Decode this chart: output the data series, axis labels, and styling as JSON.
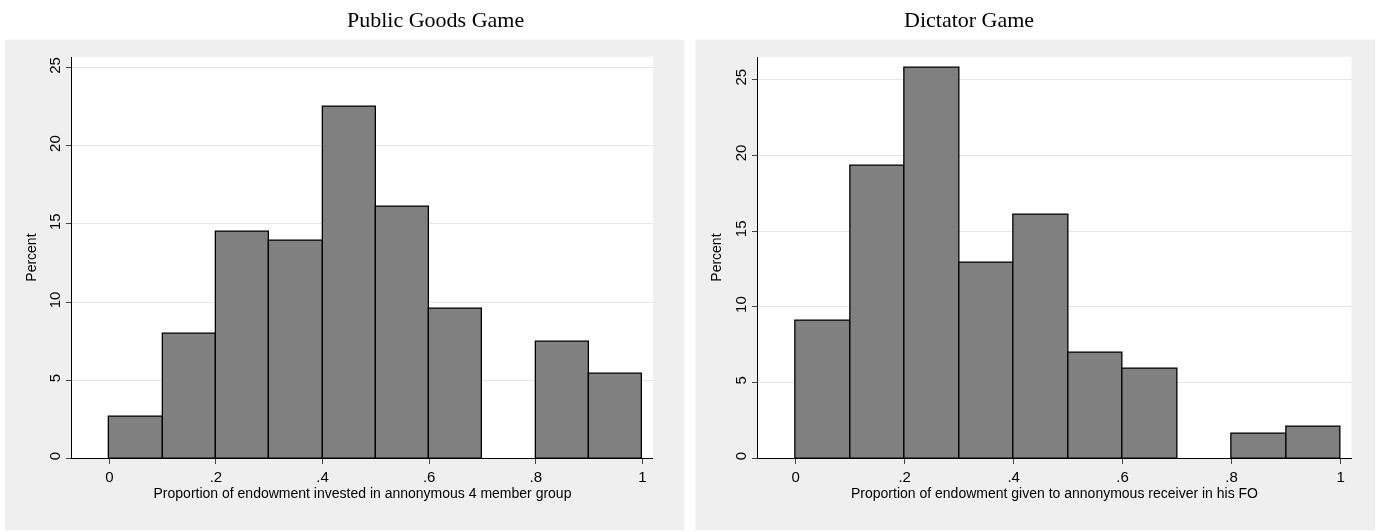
{
  "chart_data": [
    {
      "type": "histogram",
      "title": "Public Goods Game",
      "xlabel": "Proportion of endowment invested in annonymous 4 member group",
      "ylabel": "Percent",
      "bins": [
        0,
        0.1,
        0.2,
        0.3,
        0.4,
        0.5,
        0.6,
        0.7,
        0.8,
        0.9,
        1
      ],
      "values": [
        2.7,
        8.0,
        14.5,
        13.9,
        22.5,
        16.1,
        9.6,
        0,
        7.5,
        5.4
      ],
      "color": "#808080",
      "xlim": [
        -0.07,
        1.02
      ],
      "ylim": [
        0,
        25.7
      ],
      "xticks": [
        0,
        {
          "value": 0.2,
          "label": ".2"
        },
        {
          "value": 0.4,
          "label": ".4"
        },
        {
          "value": 0.6,
          "label": ".6"
        },
        {
          "value": 0.8,
          "label": ".8"
        },
        1
      ],
      "yticks": [
        0,
        5,
        10,
        15,
        20,
        25
      ],
      "grid": "y"
    },
    {
      "type": "histogram",
      "title": "Dictator Game",
      "xlabel": "Proportion of endowment given to annonymous receiver in his FO",
      "ylabel": "Percent",
      "bins": [
        0,
        0.1,
        0.2,
        0.3,
        0.4,
        0.5,
        0.6,
        0.7,
        0.8,
        0.9,
        1
      ],
      "values": [
        9.1,
        19.3,
        25.8,
        12.9,
        16.1,
        7.0,
        5.9,
        0,
        1.6,
        2.1
      ],
      "color": "#808080",
      "xlim": [
        -0.07,
        1.02
      ],
      "ylim": [
        0,
        26.5
      ],
      "xticks": [
        0,
        {
          "value": 0.2,
          "label": ".2"
        },
        {
          "value": 0.4,
          "label": ".4"
        },
        {
          "value": 0.6,
          "label": ".6"
        },
        {
          "value": 0.8,
          "label": ".8"
        },
        1
      ],
      "yticks": [
        0,
        5,
        10,
        15,
        20,
        25
      ],
      "grid": "y"
    }
  ]
}
